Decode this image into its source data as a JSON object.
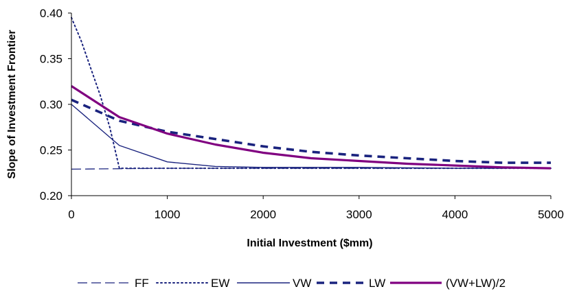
{
  "chart_data": {
    "type": "line",
    "title": "",
    "xlabel": "Initial Investment ($mm)",
    "ylabel": "Slope of Investment Frontier",
    "xlim": [
      0,
      5000
    ],
    "ylim": [
      0.2,
      0.4
    ],
    "x_ticks": [
      0,
      1000,
      2000,
      3000,
      4000,
      5000
    ],
    "y_ticks": [
      0.2,
      0.25,
      0.3,
      0.35,
      0.4
    ],
    "x_tick_labels": [
      "0",
      "1000",
      "2000",
      "3000",
      "4000",
      "5000"
    ],
    "y_tick_labels": [
      "0.20",
      "0.25",
      "0.30",
      "0.35",
      "0.40"
    ],
    "grid": false,
    "legend_position": "bottom",
    "series": [
      {
        "name": "FF",
        "style": "long-dash",
        "color": "#1a237e",
        "x": [
          0,
          1000,
          2000,
          3000,
          4000,
          5000
        ],
        "y": [
          0.229,
          0.23,
          0.23,
          0.23,
          0.23,
          0.23
        ]
      },
      {
        "name": "EW",
        "style": "dotted",
        "color": "#1a237e",
        "x": [
          0,
          100,
          200,
          300,
          400,
          500,
          1000,
          2000,
          3000,
          4000,
          5000
        ],
        "y": [
          0.395,
          0.37,
          0.34,
          0.31,
          0.275,
          0.23,
          0.23,
          0.23,
          0.23,
          0.23,
          0.23
        ]
      },
      {
        "name": "VW",
        "style": "solid-thin",
        "color": "#1a237e",
        "x": [
          0,
          500,
          1000,
          1500,
          2000,
          3000,
          4000,
          5000
        ],
        "y": [
          0.3,
          0.255,
          0.237,
          0.232,
          0.231,
          0.231,
          0.23,
          0.23
        ]
      },
      {
        "name": "LW",
        "style": "thick-dash",
        "color": "#1a237e",
        "x": [
          0,
          500,
          1000,
          1500,
          2000,
          2500,
          3000,
          3500,
          4000,
          4500,
          5000
        ],
        "y": [
          0.305,
          0.282,
          0.27,
          0.262,
          0.254,
          0.248,
          0.244,
          0.241,
          0.238,
          0.236,
          0.236
        ]
      },
      {
        "name": "(VW+LW)/2",
        "style": "solid-thick",
        "color": "#800080",
        "x": [
          0,
          500,
          1000,
          1500,
          2000,
          2500,
          3000,
          3500,
          4000,
          4500,
          5000
        ],
        "y": [
          0.32,
          0.286,
          0.268,
          0.256,
          0.247,
          0.241,
          0.238,
          0.235,
          0.233,
          0.231,
          0.23
        ]
      }
    ]
  }
}
